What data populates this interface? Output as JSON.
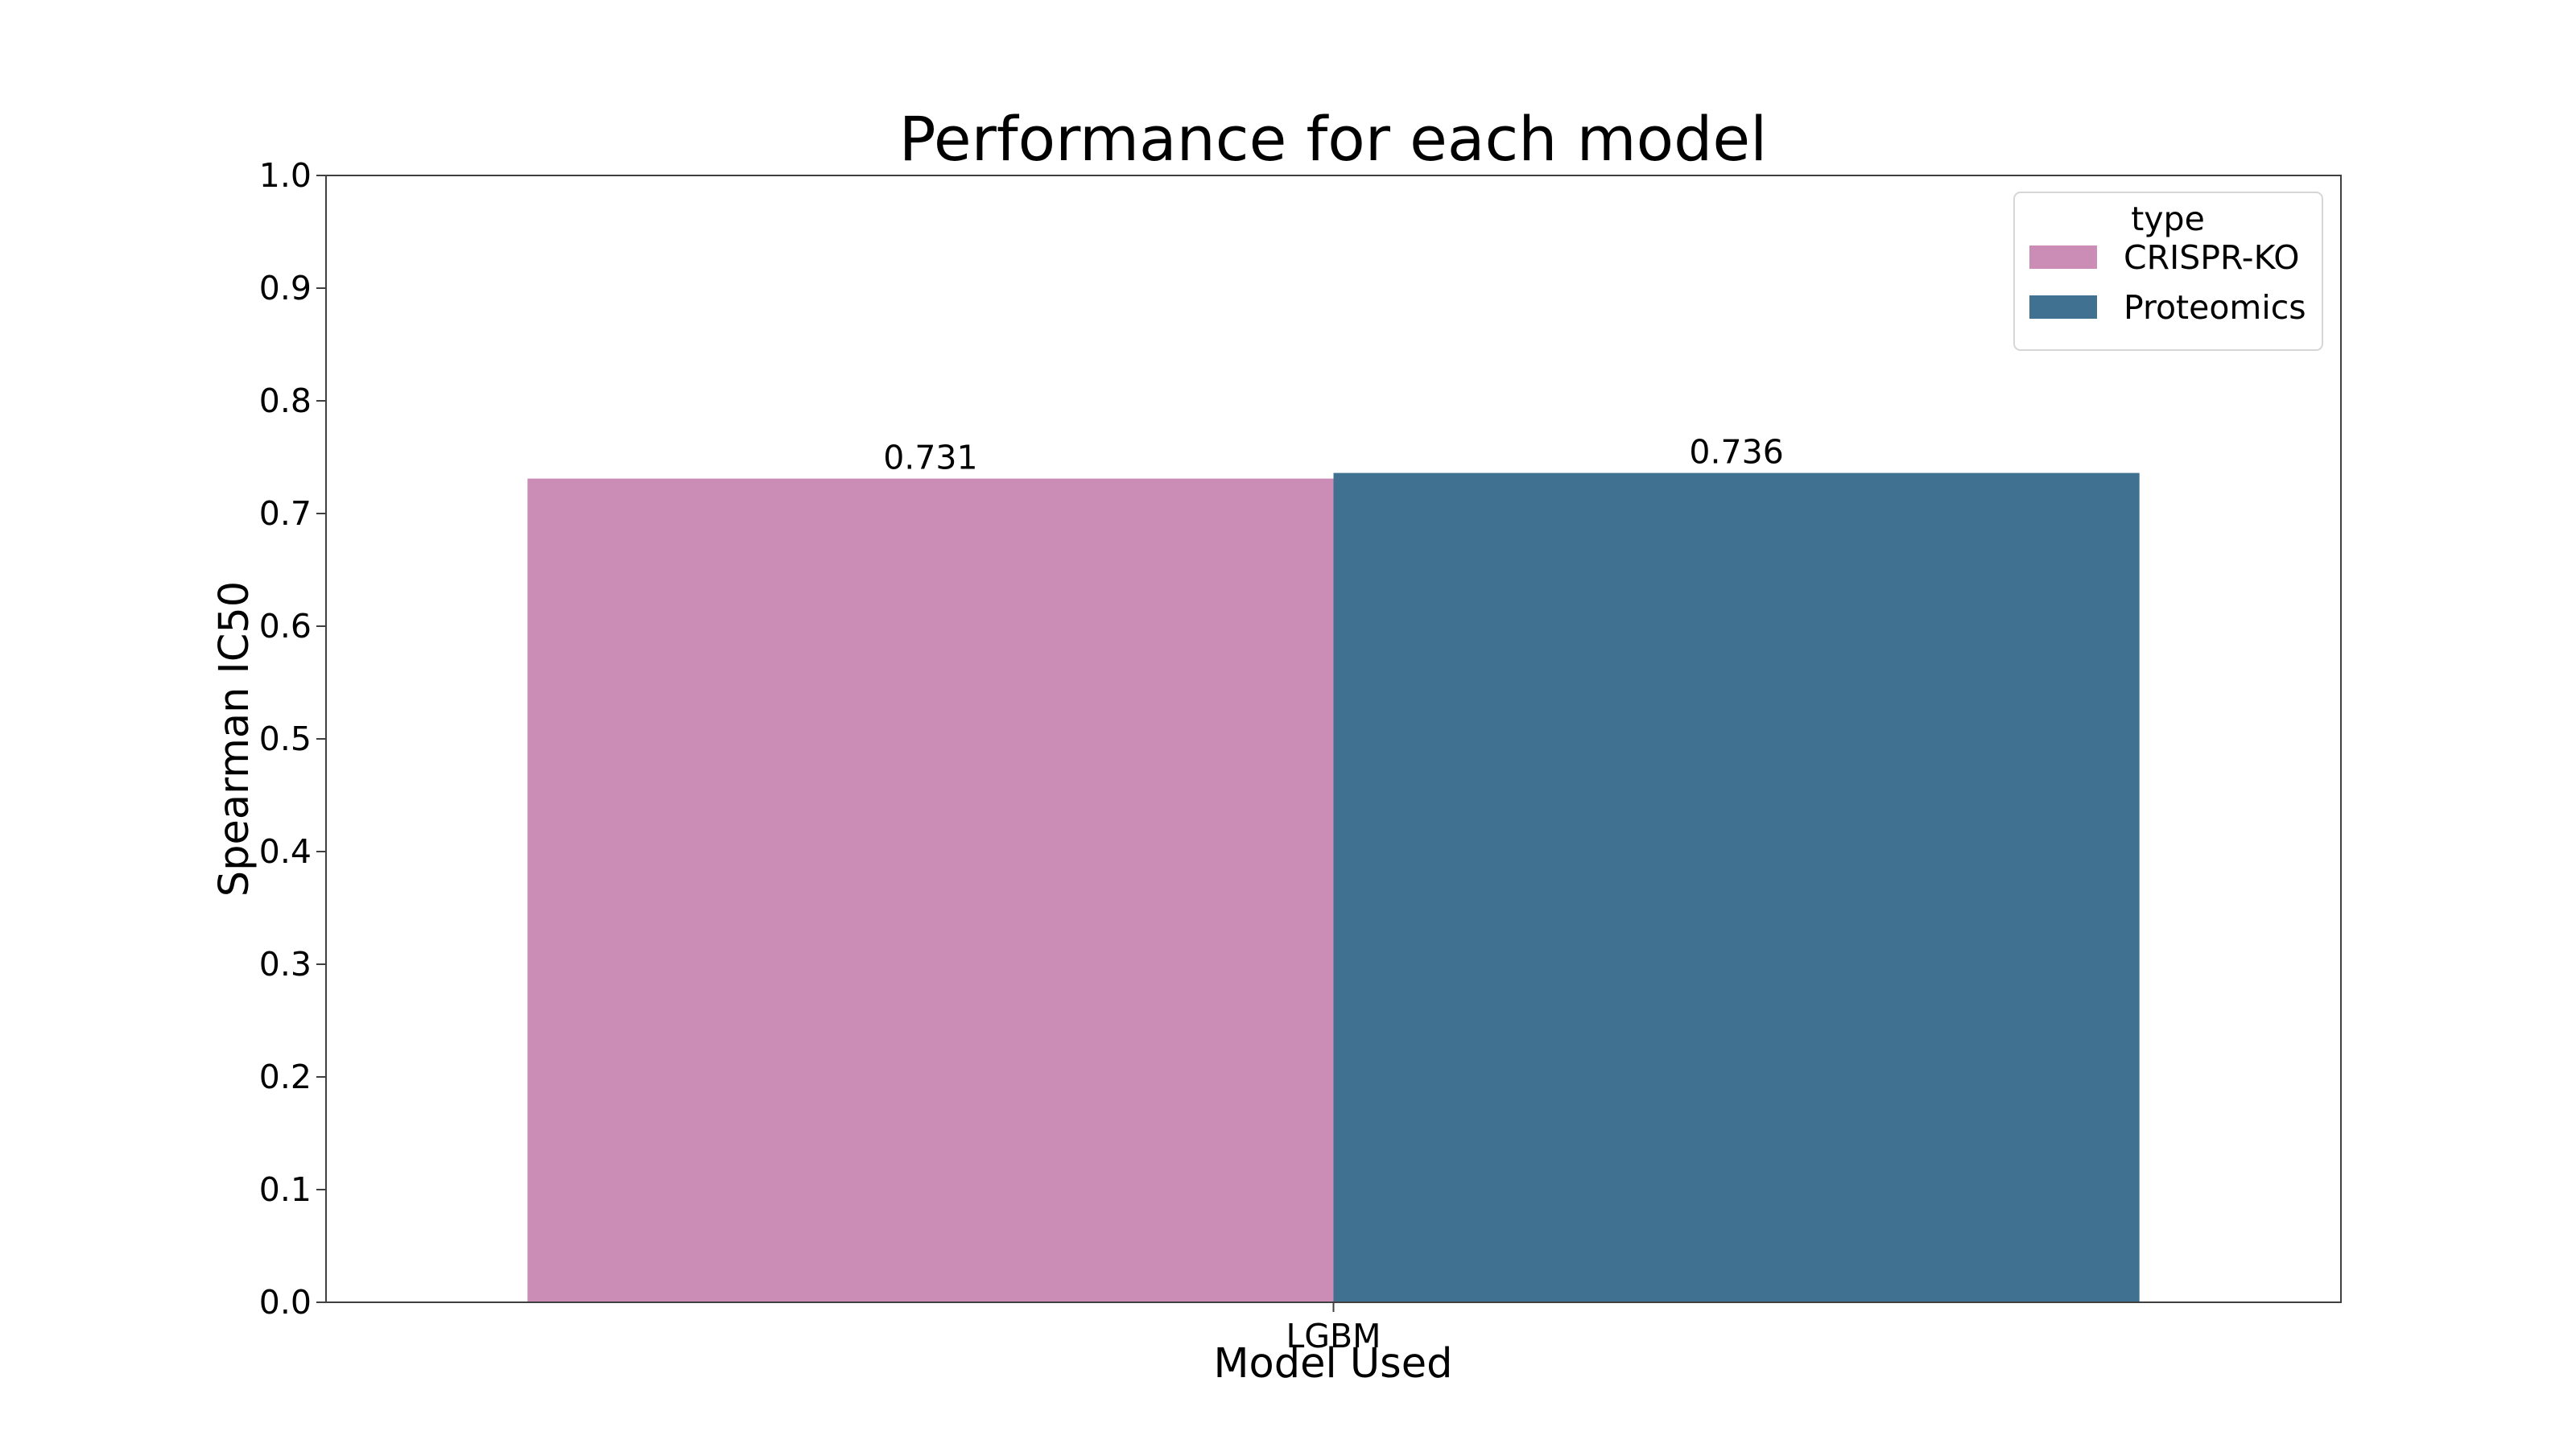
{
  "chart_data": {
    "type": "bar",
    "title": "Performance for each model",
    "xlabel": "Model Used",
    "ylabel": "Spearman IC50",
    "categories": [
      "LGBM"
    ],
    "series": [
      {
        "name": "CRISPR-KO",
        "values": [
          0.731
        ],
        "labels": [
          "0.731"
        ],
        "color": "#cb8cb6"
      },
      {
        "name": "Proteomics",
        "values": [
          0.736
        ],
        "labels": [
          "0.736"
        ],
        "color": "#407191"
      }
    ],
    "ylim": [
      0,
      1.0
    ],
    "yticks": [
      "0.0",
      "0.1",
      "0.2",
      "0.3",
      "0.4",
      "0.5",
      "0.6",
      "0.7",
      "0.8",
      "0.9",
      "1.0"
    ],
    "grid": false,
    "legend": {
      "title": "type",
      "placement": "top-right"
    }
  }
}
